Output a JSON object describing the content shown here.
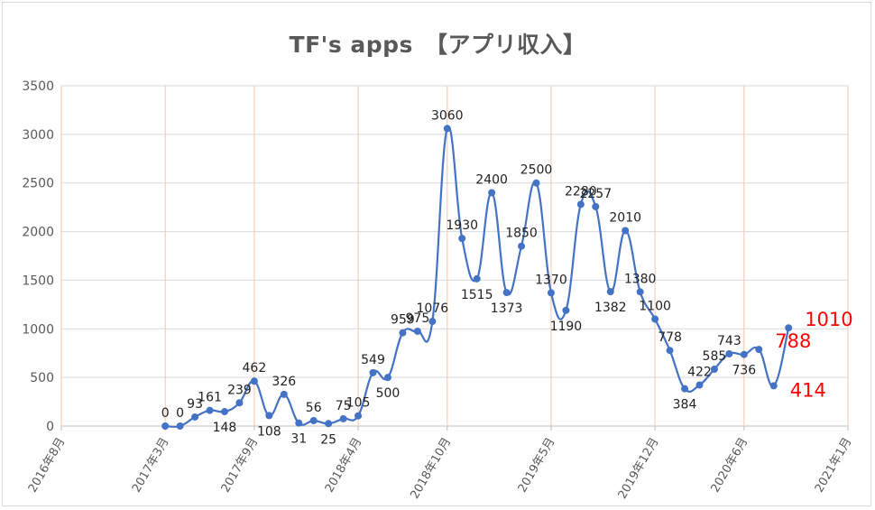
{
  "chart_data": {
    "type": "line",
    "title": "TF's apps　【アプリ収入】",
    "xlabel": "",
    "ylabel": "",
    "ylim": [
      0,
      3500
    ],
    "yticks": [
      0,
      500,
      1000,
      1500,
      2000,
      2500,
      3000,
      3500
    ],
    "xlim": [
      "2016-08",
      "2021-01"
    ],
    "xticks": [
      {
        "date": "2016-08",
        "label": "2016年8月"
      },
      {
        "date": "2017-03",
        "label": "2017年3月"
      },
      {
        "date": "2017-09",
        "label": "2017年9月"
      },
      {
        "date": "2018-04",
        "label": "2018年4月"
      },
      {
        "date": "2018-10",
        "label": "2018年10月"
      },
      {
        "date": "2019-05",
        "label": "2019年5月"
      },
      {
        "date": "2019-12",
        "label": "2019年12月"
      },
      {
        "date": "2020-06",
        "label": "2020年6月"
      },
      {
        "date": "2021-01",
        "label": "2021年1月"
      }
    ],
    "grid": {
      "horizontal": true,
      "vertical": true
    },
    "series": [
      {
        "color": "#4472c4",
        "x": [
          "2017-03",
          "2017-04",
          "2017-05",
          "2017-06",
          "2017-07",
          "2017-08",
          "2017-09",
          "2017-10",
          "2017-11",
          "2017-12",
          "2018-01",
          "2018-02",
          "2018-03",
          "2018-04",
          "2018-05",
          "2018-06",
          "2018-07",
          "2018-08",
          "2018-09",
          "2018-10",
          "2018-11",
          "2018-12",
          "2019-01",
          "2019-02",
          "2019-03",
          "2019-04",
          "2019-05",
          "2019-06",
          "2019-07",
          "2019-08",
          "2019-09",
          "2019-10",
          "2019-11",
          "2019-12",
          "2020-01",
          "2020-02",
          "2020-03",
          "2020-04",
          "2020-05",
          "2020-06",
          "2020-07",
          "2020-08",
          "2020-09",
          "2020-10"
        ],
        "values": [
          0,
          0,
          93,
          161,
          148,
          239,
          462,
          108,
          326,
          31,
          56,
          25,
          75,
          105,
          549,
          500,
          959,
          975,
          1076,
          3060,
          1930,
          1515,
          2400,
          1373,
          1850,
          2500,
          1370,
          1190,
          2280,
          2257,
          1382,
          2010,
          1380,
          1100,
          778,
          384,
          422,
          585,
          743,
          736,
          788,
          414,
          1010,
          null
        ],
        "data_labels": [
          "0",
          "0",
          "93",
          "161",
          "148",
          "239",
          "462",
          "108",
          "326",
          "31",
          "56",
          "25",
          "75",
          "105",
          "549",
          "500",
          "959",
          "975",
          "1076",
          "3060",
          "1930",
          "1515",
          "2400",
          "1373",
          "1850",
          "2500",
          "1370",
          "1190",
          "2280",
          "2257",
          "1382",
          "2010",
          "1380",
          "1100",
          "778",
          "384",
          "422",
          "585",
          "743",
          "736",
          "788",
          "414",
          "1010",
          ""
        ]
      }
    ],
    "highlight_color": "#ff0000",
    "highlighted_labels": [
      "788",
      "414",
      "1010"
    ]
  }
}
